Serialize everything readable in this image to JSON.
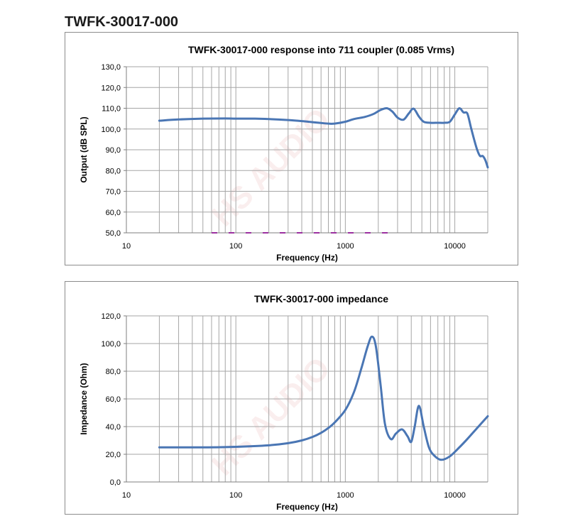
{
  "page": {
    "heading": "TWFK-30017-000"
  },
  "watermark": {
    "text": "HS AUDIO"
  },
  "colors": {
    "series": "#4a76b4",
    "grid": "#a6a6a6",
    "axis": "#7f7f7f",
    "baseline_marks": "#9b2fa0"
  },
  "chart_data": [
    {
      "type": "line",
      "title": "TWFK-30017-000 response into 711 coupler (0.085 Vrms)",
      "xlabel": "Frequency (Hz)",
      "ylabel": "Output (dB SPL)",
      "xscale": "log",
      "xlim": [
        10,
        20000
      ],
      "ylim": [
        50,
        130
      ],
      "xticks": [
        10,
        100,
        1000,
        10000
      ],
      "xtick_labels": [
        "10",
        "100",
        "1000",
        "10000"
      ],
      "yticks": [
        50,
        60,
        70,
        80,
        90,
        100,
        110,
        120,
        130
      ],
      "ytick_labels": [
        "50,0",
        "60,0",
        "70,0",
        "80,0",
        "90,0",
        "100,0",
        "110,0",
        "120,0",
        "130,0"
      ],
      "grid": true,
      "legend": "none",
      "series": [
        {
          "name": "Output",
          "x": [
            20,
            30,
            50,
            80,
            100,
            150,
            200,
            300,
            400,
            500,
            600,
            700,
            800,
            1000,
            1200,
            1500,
            1800,
            2100,
            2400,
            2700,
            3000,
            3400,
            3800,
            4200,
            4700,
            5200,
            6000,
            7000,
            8000,
            9000,
            10000,
            11000,
            12000,
            13000,
            14000,
            15000,
            16000,
            17000,
            18000,
            19000,
            20000
          ],
          "y": [
            104,
            104.6,
            105,
            105.1,
            105,
            105,
            104.8,
            104.3,
            103.8,
            103.3,
            102.9,
            102.6,
            102.6,
            103.5,
            104.8,
            105.8,
            107.2,
            109.2,
            110,
            108.3,
            105.5,
            104.5,
            107.5,
            109.8,
            106,
            103.5,
            103,
            103,
            103,
            103.5,
            107,
            110,
            108,
            107.5,
            101,
            95,
            90,
            87,
            87,
            85,
            81.5
          ]
        }
      ],
      "baseline_marks": {
        "y": 50,
        "x_from": 60,
        "x_to": 2800
      }
    },
    {
      "type": "line",
      "title": "TWFK-30017-000 impedance",
      "xlabel": "Frequency (Hz)",
      "ylabel": "Impedance (Ohm)",
      "xscale": "log",
      "xlim": [
        10,
        20000
      ],
      "ylim": [
        0,
        120
      ],
      "xticks": [
        10,
        100,
        1000,
        10000
      ],
      "xtick_labels": [
        "10",
        "100",
        "1000",
        "10000"
      ],
      "yticks": [
        0,
        20,
        40,
        60,
        80,
        100,
        120
      ],
      "ytick_labels": [
        "0,0",
        "20,0",
        "40,0",
        "60,0",
        "80,0",
        "100,0",
        "120,0"
      ],
      "grid": true,
      "legend": "none",
      "series": [
        {
          "name": "Impedance",
          "x": [
            20,
            50,
            100,
            200,
            300,
            400,
            500,
            600,
            700,
            800,
            1000,
            1200,
            1400,
            1600,
            1750,
            1900,
            2100,
            2300,
            2600,
            2900,
            3300,
            3700,
            4000,
            4300,
            4700,
            5200,
            5800,
            6500,
            7500,
            9000,
            11000,
            13000,
            16000,
            20000
          ],
          "y": [
            25,
            25,
            25.4,
            26.5,
            28,
            30,
            32.5,
            35.5,
            39,
            43,
            52,
            65,
            82,
            98,
            105,
            98,
            70,
            42,
            31,
            35,
            38,
            33,
            29,
            40,
            55,
            40,
            25,
            19,
            16,
            18.5,
            25,
            31,
            39,
            47.5
          ]
        }
      ]
    }
  ]
}
